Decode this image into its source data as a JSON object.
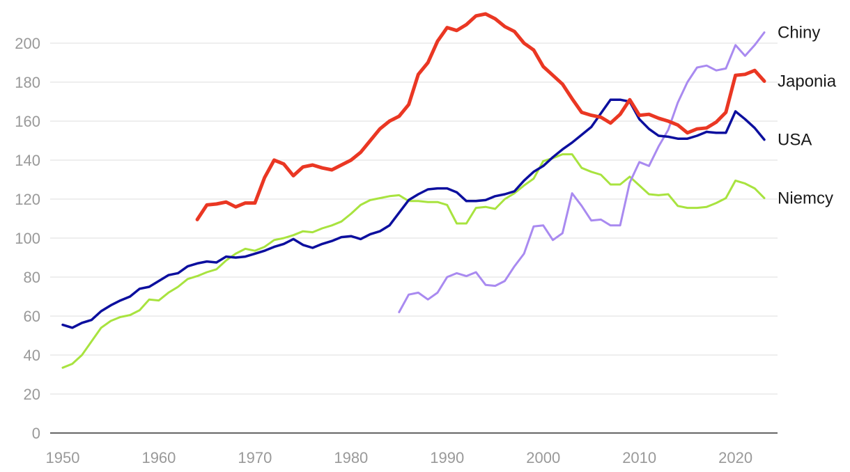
{
  "chart_data": {
    "type": "line",
    "title": "",
    "xlabel": "",
    "ylabel": "",
    "xlim": [
      1950,
      2023
    ],
    "ylim": [
      0,
      210
    ],
    "x_ticks": [
      "1950",
      "1960",
      "1970",
      "1980",
      "1990",
      "2000",
      "2010",
      "2020"
    ],
    "y_ticks": [
      "0",
      "20",
      "40",
      "60",
      "80",
      "100",
      "120",
      "140",
      "160",
      "180",
      "200"
    ],
    "grid": "horizontal",
    "legend": "direct labels at right end of lines",
    "series": [
      {
        "name": "Chiny",
        "color": "#a98af0",
        "stroke": 3,
        "x": [
          1985,
          1986,
          1987,
          1988,
          1989,
          1990,
          1991,
          1992,
          1993,
          1994,
          1995,
          1996,
          1997,
          1998,
          1999,
          2000,
          2001,
          2002,
          2003,
          2004,
          2005,
          2006,
          2007,
          2008,
          2009,
          2010,
          2011,
          2012,
          2013,
          2014,
          2015,
          2016,
          2017,
          2018,
          2019,
          2020,
          2021,
          2022,
          2023
        ],
        "y": [
          62,
          71,
          72,
          68.5,
          72,
          80,
          82,
          80.5,
          82.5,
          76,
          75.5,
          78,
          85.5,
          92,
          106,
          106.5,
          99,
          102.5,
          123,
          116.5,
          109,
          109.5,
          106.5,
          106.5,
          128.5,
          139,
          137,
          147,
          155.5,
          169.5,
          180,
          187.5,
          188.5,
          186,
          187,
          199,
          193.5,
          199,
          205.5
        ]
      },
      {
        "name": "Japonia",
        "color": "#ea3723",
        "stroke": 5,
        "x": [
          1964,
          1965,
          1966,
          1967,
          1968,
          1969,
          1970,
          1971,
          1972,
          1973,
          1974,
          1975,
          1976,
          1977,
          1978,
          1979,
          1980,
          1981,
          1982,
          1983,
          1984,
          1985,
          1986,
          1987,
          1988,
          1989,
          1990,
          1991,
          1992,
          1993,
          1994,
          1995,
          1996,
          1997,
          1998,
          1999,
          2000,
          2001,
          2002,
          2003,
          2004,
          2005,
          2006,
          2007,
          2008,
          2009,
          2010,
          2011,
          2012,
          2013,
          2014,
          2015,
          2016,
          2017,
          2018,
          2019,
          2020,
          2021,
          2022,
          2023
        ],
        "y": [
          109.5,
          117,
          117.5,
          118.5,
          116,
          118,
          118,
          131,
          140,
          138,
          132,
          136.5,
          137.5,
          136,
          135,
          137.5,
          140,
          144,
          150,
          156,
          160,
          162.5,
          168.5,
          184,
          190,
          201,
          208,
          206.5,
          209.5,
          214,
          215,
          212.5,
          208.5,
          206,
          200,
          196.5,
          188,
          183.5,
          179,
          171.5,
          164.5,
          163,
          162,
          159,
          163.5,
          171,
          163,
          163.5,
          161.5,
          160,
          158,
          154,
          156,
          156.5,
          159.5,
          164.5,
          183.5,
          184,
          186,
          180.5
        ]
      },
      {
        "name": "USA",
        "color": "#0c0f9e",
        "stroke": 3.5,
        "x": [
          1950,
          1951,
          1952,
          1953,
          1954,
          1955,
          1956,
          1957,
          1958,
          1959,
          1960,
          1961,
          1962,
          1963,
          1964,
          1965,
          1966,
          1967,
          1968,
          1969,
          1970,
          1971,
          1972,
          1973,
          1974,
          1975,
          1976,
          1977,
          1978,
          1979,
          1980,
          1981,
          1982,
          1983,
          1984,
          1985,
          1986,
          1987,
          1988,
          1989,
          1990,
          1991,
          1992,
          1993,
          1994,
          1995,
          1996,
          1997,
          1998,
          1999,
          2000,
          2001,
          2002,
          2003,
          2004,
          2005,
          2006,
          2007,
          2008,
          2009,
          2010,
          2011,
          2012,
          2013,
          2014,
          2015,
          2016,
          2017,
          2018,
          2019,
          2020,
          2021,
          2022,
          2023
        ],
        "y": [
          55.5,
          54,
          56.5,
          58,
          62.5,
          65.5,
          68,
          70,
          74,
          75,
          78,
          81,
          82,
          85.5,
          87,
          88,
          87.5,
          90.5,
          90,
          90.5,
          92,
          93.5,
          95.5,
          97,
          99.5,
          96.5,
          95,
          97,
          98.5,
          100.5,
          101,
          99.5,
          102,
          103.5,
          106.5,
          113,
          119.5,
          122.5,
          125,
          125.5,
          125.5,
          123.5,
          119,
          119,
          119.5,
          121.5,
          122.5,
          124,
          129.5,
          134,
          137,
          141.5,
          145.5,
          149,
          153,
          157,
          164,
          171,
          171,
          170,
          161,
          156,
          152.5,
          152,
          151,
          151,
          152.5,
          154.5,
          154,
          154,
          165,
          161,
          156.5,
          150.5
        ]
      },
      {
        "name": "Niemcy",
        "color": "#a8e33f",
        "stroke": 3,
        "x": [
          1950,
          1951,
          1952,
          1953,
          1954,
          1955,
          1956,
          1957,
          1958,
          1959,
          1960,
          1961,
          1962,
          1963,
          1964,
          1965,
          1966,
          1967,
          1968,
          1969,
          1970,
          1971,
          1972,
          1973,
          1974,
          1975,
          1976,
          1977,
          1978,
          1979,
          1980,
          1981,
          1982,
          1983,
          1984,
          1985,
          1986,
          1987,
          1988,
          1989,
          1990,
          1991,
          1992,
          1993,
          1994,
          1995,
          1996,
          1997,
          1998,
          1999,
          2000,
          2001,
          2002,
          2003,
          2004,
          2005,
          2006,
          2007,
          2008,
          2009,
          2010,
          2011,
          2012,
          2013,
          2014,
          2015,
          2016,
          2017,
          2018,
          2019,
          2020,
          2021,
          2022,
          2023
        ],
        "y": [
          33.5,
          35.5,
          40,
          47,
          54,
          57.5,
          59.5,
          60.5,
          63,
          68.5,
          68,
          72,
          75,
          79,
          80.5,
          82.5,
          84,
          88.5,
          92,
          94.5,
          93.5,
          95.5,
          99,
          100,
          101.5,
          103.5,
          103,
          105,
          106.5,
          108.5,
          112.5,
          117,
          119.5,
          120.5,
          121.5,
          122,
          119,
          119,
          118.5,
          118.5,
          117,
          107.5,
          107.5,
          115.5,
          116,
          115,
          120,
          123,
          127,
          130.5,
          139.5,
          141,
          143,
          143,
          136,
          134,
          132.5,
          127.5,
          127.5,
          131.5,
          127,
          122.5,
          122,
          122.5,
          116.5,
          115.5,
          115.5,
          116,
          118,
          120.5,
          129.5,
          128,
          125.5,
          120.5
        ]
      }
    ]
  }
}
